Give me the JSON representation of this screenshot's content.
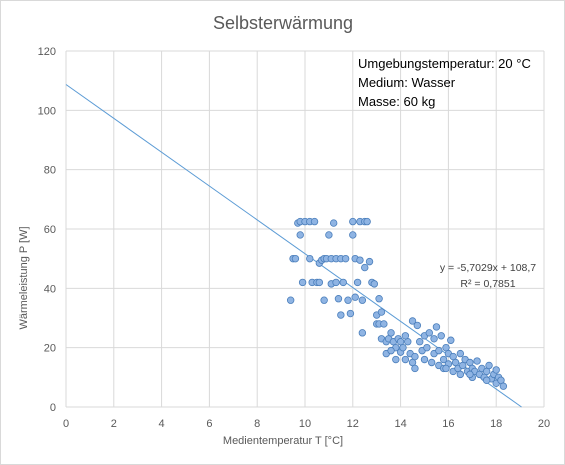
{
  "chart_data": {
    "type": "scatter",
    "title": "Selbsterwärmung",
    "xlabel": "Medientemperatur T [°C]",
    "ylabel": "Wärmeleistung P [W]",
    "xlim": [
      0,
      20
    ],
    "ylim": [
      0,
      120
    ],
    "xticks": [
      "0",
      "2",
      "4",
      "6",
      "8",
      "10",
      "12",
      "14",
      "16",
      "18",
      "20"
    ],
    "yticks": [
      "0",
      "20",
      "40",
      "60",
      "80",
      "100",
      "120"
    ],
    "grid": true,
    "legend": "none",
    "annotation_lines": [
      "Umgebungstemperatur: 20 °C",
      "Medium: Wasser",
      "Masse: 60 kg"
    ],
    "trendline": {
      "slope": -5.7029,
      "intercept": 108.7,
      "equation": "y = -5,7029x + 108,7",
      "r2_label": "R² = 0,7851"
    },
    "colors": {
      "marker_fill": "#8fb4e3",
      "marker_edge": "#4a7ebb",
      "trendline": "#5b9bd5",
      "grid": "#d9d9d9"
    },
    "points": [
      [
        9.4,
        36
      ],
      [
        9.5,
        50
      ],
      [
        9.6,
        50
      ],
      [
        9.7,
        62
      ],
      [
        9.8,
        58
      ],
      [
        9.8,
        62.5
      ],
      [
        9.9,
        42
      ],
      [
        10.0,
        62.5
      ],
      [
        10.2,
        62.5
      ],
      [
        10.2,
        50
      ],
      [
        10.3,
        42
      ],
      [
        10.4,
        62.5
      ],
      [
        10.5,
        42
      ],
      [
        10.6,
        48.5
      ],
      [
        10.6,
        42
      ],
      [
        10.7,
        49.5
      ],
      [
        10.8,
        50
      ],
      [
        10.8,
        36
      ],
      [
        10.9,
        50
      ],
      [
        11.0,
        58
      ],
      [
        11.1,
        50
      ],
      [
        11.1,
        41.5
      ],
      [
        11.2,
        62
      ],
      [
        11.3,
        42
      ],
      [
        11.3,
        50
      ],
      [
        11.4,
        36.5
      ],
      [
        11.5,
        50
      ],
      [
        11.5,
        31
      ],
      [
        11.6,
        42
      ],
      [
        11.7,
        50
      ],
      [
        11.8,
        36
      ],
      [
        11.9,
        31.5
      ],
      [
        12.0,
        58
      ],
      [
        12.0,
        62.5
      ],
      [
        12.1,
        50
      ],
      [
        12.1,
        37
      ],
      [
        12.2,
        42
      ],
      [
        12.3,
        62.5
      ],
      [
        12.3,
        49.5
      ],
      [
        12.4,
        36
      ],
      [
        12.4,
        25
      ],
      [
        12.5,
        62.5
      ],
      [
        12.5,
        47
      ],
      [
        12.6,
        62.5
      ],
      [
        12.7,
        49
      ],
      [
        12.8,
        42
      ],
      [
        12.9,
        41.5
      ],
      [
        13.0,
        31
      ],
      [
        13.0,
        28
      ],
      [
        13.1,
        36.5
      ],
      [
        13.1,
        28
      ],
      [
        13.2,
        32
      ],
      [
        13.2,
        23
      ],
      [
        13.3,
        28
      ],
      [
        13.4,
        22
      ],
      [
        13.4,
        18
      ],
      [
        13.5,
        23
      ],
      [
        13.6,
        25
      ],
      [
        13.7,
        22
      ],
      [
        13.8,
        20
      ],
      [
        13.8,
        16
      ],
      [
        13.9,
        23
      ],
      [
        14.0,
        22
      ],
      [
        14.0,
        18.5
      ],
      [
        14.1,
        20
      ],
      [
        14.2,
        16
      ],
      [
        14.3,
        22
      ],
      [
        14.4,
        18
      ],
      [
        14.5,
        29
      ],
      [
        14.5,
        15
      ],
      [
        14.6,
        17
      ],
      [
        14.6,
        13
      ],
      [
        14.7,
        27.5
      ],
      [
        14.8,
        22
      ],
      [
        14.9,
        19
      ],
      [
        15.0,
        16
      ],
      [
        15.0,
        24
      ],
      [
        15.1,
        20
      ],
      [
        15.2,
        25
      ],
      [
        15.3,
        15
      ],
      [
        15.4,
        18
      ],
      [
        15.4,
        23
      ],
      [
        15.5,
        27
      ],
      [
        15.6,
        19
      ],
      [
        15.6,
        14
      ],
      [
        15.7,
        24
      ],
      [
        15.8,
        16
      ],
      [
        15.8,
        13
      ],
      [
        15.9,
        20
      ],
      [
        16.0,
        14.5
      ],
      [
        16.0,
        18
      ],
      [
        16.1,
        22.5
      ],
      [
        16.2,
        12
      ],
      [
        16.2,
        17
      ],
      [
        16.3,
        15
      ],
      [
        16.4,
        13
      ],
      [
        16.5,
        18
      ],
      [
        16.5,
        11
      ],
      [
        16.6,
        14
      ],
      [
        16.7,
        16
      ],
      [
        16.8,
        12
      ],
      [
        16.9,
        15
      ],
      [
        17.0,
        10
      ],
      [
        17.0,
        13
      ],
      [
        17.1,
        12
      ],
      [
        17.2,
        15.5
      ],
      [
        17.3,
        11
      ],
      [
        17.4,
        13
      ],
      [
        17.5,
        10
      ],
      [
        17.6,
        12
      ],
      [
        17.7,
        14
      ],
      [
        17.8,
        9.5
      ],
      [
        17.9,
        11
      ],
      [
        18.0,
        12.5
      ],
      [
        18.0,
        8
      ],
      [
        18.1,
        10
      ],
      [
        18.2,
        9
      ],
      [
        18.3,
        7
      ],
      [
        17.6,
        9
      ],
      [
        16.9,
        11
      ],
      [
        15.9,
        13
      ],
      [
        14.2,
        24
      ],
      [
        13.6,
        19
      ]
    ]
  }
}
